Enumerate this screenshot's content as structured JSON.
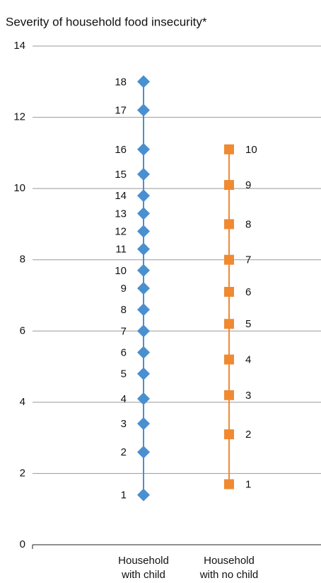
{
  "chart_data": {
    "type": "strip",
    "title": "Severity of household food insecurity*",
    "categories": [
      [
        "Household",
        "with child"
      ],
      [
        "Household",
        "with no child"
      ]
    ],
    "ylim": [
      0,
      14
    ],
    "yticks": [
      0,
      2,
      4,
      6,
      8,
      10,
      12,
      14
    ],
    "grid": true,
    "series": [
      {
        "color": "#4a8fd0",
        "marker": "diamond",
        "label_side": "left",
        "values": [
          1.4,
          2.6,
          3.4,
          4.1,
          4.8,
          5.4,
          6.0,
          6.6,
          7.2,
          7.7,
          8.3,
          8.8,
          9.3,
          9.8,
          10.4,
          11.1,
          12.2,
          13.0
        ],
        "point_labels": [
          1,
          2,
          3,
          4,
          5,
          6,
          7,
          8,
          9,
          10,
          11,
          12,
          13,
          14,
          15,
          16,
          17,
          18
        ]
      },
      {
        "color": "#f08a32",
        "marker": "square",
        "label_side": "right",
        "values": [
          1.7,
          3.1,
          4.2,
          5.2,
          6.2,
          7.1,
          8.0,
          9.0,
          10.1,
          11.1
        ],
        "point_labels": [
          1,
          2,
          3,
          4,
          5,
          6,
          7,
          8,
          9,
          10
        ]
      }
    ]
  }
}
